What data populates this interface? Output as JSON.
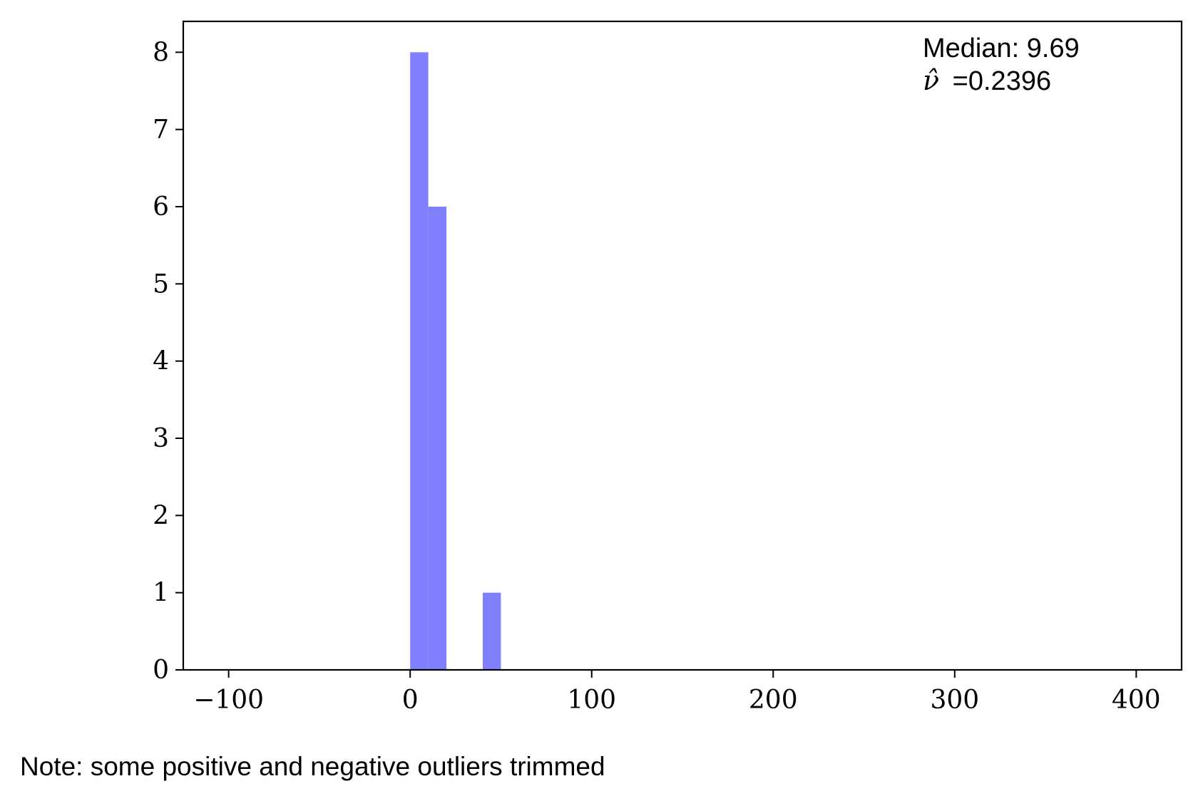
{
  "chart_data": {
    "type": "bar",
    "subtype": "histogram",
    "bin_width": 10,
    "bins": [
      {
        "start": 0,
        "end": 10,
        "count": 8
      },
      {
        "start": 10,
        "end": 20,
        "count": 6
      },
      {
        "start": 40,
        "end": 50,
        "count": 1
      }
    ],
    "xlim": [
      -125,
      425
    ],
    "ylim": [
      0,
      8.4
    ],
    "xticks": [
      -100,
      0,
      100,
      200,
      300,
      400
    ],
    "xtick_labels": [
      "−100",
      "0",
      "100",
      "200",
      "300",
      "400"
    ],
    "yticks": [
      0,
      1,
      2,
      3,
      4,
      5,
      6,
      7,
      8
    ],
    "ytick_labels": [
      "0",
      "1",
      "2",
      "3",
      "4",
      "5",
      "6",
      "7",
      "8"
    ],
    "bar_color": "#8080ff",
    "grid": false,
    "annotations": {
      "median_label": "Median: 9.69",
      "nu_symbol": "ν̂",
      "nu_value": "=0.2396"
    },
    "note": "Note: some positive and negative outliers trimmed"
  }
}
